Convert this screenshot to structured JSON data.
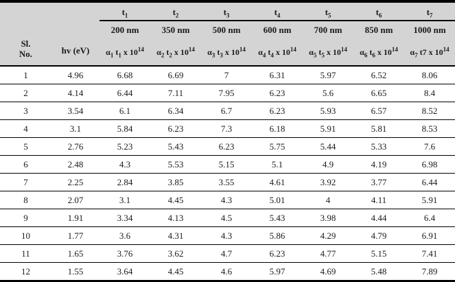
{
  "table": {
    "colors": {
      "header_bg": "#d4d4d4",
      "border": "#000000",
      "text": "#1a1a1a"
    },
    "header": {
      "sl_no_label": "Sl.\nNo.",
      "hv_label": "hv (eV)",
      "columns": [
        {
          "symbol": [
            [
              "",
              "t"
            ],
            [
              "sub",
              "1"
            ]
          ],
          "wavelength": "200 nm",
          "formula": [
            [
              "",
              "α"
            ],
            [
              "sub",
              "1"
            ],
            [
              "",
              " t"
            ],
            [
              "sub",
              "1"
            ],
            [
              "",
              " x 10"
            ],
            [
              "sup",
              "14"
            ]
          ]
        },
        {
          "symbol": [
            [
              "",
              "t"
            ],
            [
              "sub",
              "2"
            ]
          ],
          "wavelength": "350 nm",
          "formula": [
            [
              "",
              "α"
            ],
            [
              "sub",
              "2"
            ],
            [
              "",
              " t"
            ],
            [
              "sub",
              "2"
            ],
            [
              "",
              " x 10"
            ],
            [
              "sup",
              "14"
            ]
          ]
        },
        {
          "symbol": [
            [
              "",
              "t"
            ],
            [
              "sub",
              "3"
            ]
          ],
          "wavelength": "500 nm",
          "formula": [
            [
              "",
              "α"
            ],
            [
              "sub",
              "3"
            ],
            [
              "",
              " t"
            ],
            [
              "sub",
              "3"
            ],
            [
              "",
              " x 10"
            ],
            [
              "sup",
              "14"
            ]
          ]
        },
        {
          "symbol": [
            [
              "",
              "t"
            ],
            [
              "sub",
              "4"
            ]
          ],
          "wavelength": "600 nm",
          "formula": [
            [
              "",
              "α"
            ],
            [
              "sub",
              "4"
            ],
            [
              "",
              " t"
            ],
            [
              "sub",
              "4"
            ],
            [
              "",
              " x 10"
            ],
            [
              "sup",
              "14"
            ]
          ]
        },
        {
          "symbol": [
            [
              "",
              "t"
            ],
            [
              "sub",
              "5"
            ]
          ],
          "wavelength": "700 nm",
          "formula": [
            [
              "",
              "α"
            ],
            [
              "sub",
              "5"
            ],
            [
              "",
              " t"
            ],
            [
              "sub",
              "5"
            ],
            [
              "",
              " x 10"
            ],
            [
              "sup",
              "14"
            ]
          ]
        },
        {
          "symbol": [
            [
              "",
              "t"
            ],
            [
              "sub",
              "6"
            ]
          ],
          "wavelength": "850 nm",
          "formula": [
            [
              "",
              "α"
            ],
            [
              "sub",
              "6"
            ],
            [
              "",
              " t"
            ],
            [
              "sub",
              "6"
            ],
            [
              "",
              " x 10"
            ],
            [
              "sup",
              "14"
            ]
          ]
        },
        {
          "symbol": [
            [
              "",
              "t"
            ],
            [
              "sub",
              "7"
            ]
          ],
          "wavelength": "1000 nm",
          "formula": [
            [
              "",
              "α"
            ],
            [
              "sub",
              "7"
            ],
            [
              "",
              " t7 x 10"
            ],
            [
              "sup",
              "14"
            ]
          ]
        }
      ]
    },
    "rows": [
      {
        "sl": "1",
        "hv": "4.96",
        "values": [
          "6.68",
          "6.69",
          "7",
          "6.31",
          "5.97",
          "6.52",
          "8.06"
        ]
      },
      {
        "sl": "2",
        "hv": "4.14",
        "values": [
          "6.44",
          "7.11",
          "7.95",
          "6.23",
          "5.6",
          "6.65",
          "8.4"
        ]
      },
      {
        "sl": "3",
        "hv": "3.54",
        "values": [
          "6.1",
          "6.34",
          "6.7",
          "6.23",
          "5.93",
          "6.57",
          "8.52"
        ]
      },
      {
        "sl": "4",
        "hv": "3.1",
        "values": [
          "5.84",
          "6.23",
          "7.3",
          "6.18",
          "5.91",
          "5.81",
          "8.53"
        ]
      },
      {
        "sl": "5",
        "hv": "2.76",
        "values": [
          "5.23",
          "5.43",
          "6.23",
          "5.75",
          "5.44",
          "5.33",
          "7.6"
        ]
      },
      {
        "sl": "6",
        "hv": "2.48",
        "values": [
          "4.3",
          "5.53",
          "5.15",
          "5.1",
          "4.9",
          "4.19",
          "6.98"
        ]
      },
      {
        "sl": "7",
        "hv": "2.25",
        "values": [
          "2.84",
          "3.85",
          "3.55",
          "4.61",
          "3.92",
          "3.77",
          "6.44"
        ]
      },
      {
        "sl": "8",
        "hv": "2.07",
        "values": [
          "3.1",
          "4.45",
          "4.3",
          "5.01",
          "4",
          "4.11",
          "5.91"
        ]
      },
      {
        "sl": "9",
        "hv": "1.91",
        "values": [
          "3.34",
          "4.13",
          "4.5",
          "5.43",
          "3.98",
          "4.44",
          "6.4"
        ]
      },
      {
        "sl": "10",
        "hv": "1.77",
        "values": [
          "3.6",
          "4.31",
          "4.3",
          "5.86",
          "4.29",
          "4.79",
          "6.91"
        ]
      },
      {
        "sl": "11",
        "hv": "1.65",
        "values": [
          "3.76",
          "3.62",
          "4.7",
          "6.23",
          "4.77",
          "5.15",
          "7.41"
        ]
      },
      {
        "sl": "12",
        "hv": "1.55",
        "values": [
          "3.64",
          "4.45",
          "4.6",
          "5.97",
          "4.69",
          "5.48",
          "7.89"
        ]
      }
    ]
  }
}
